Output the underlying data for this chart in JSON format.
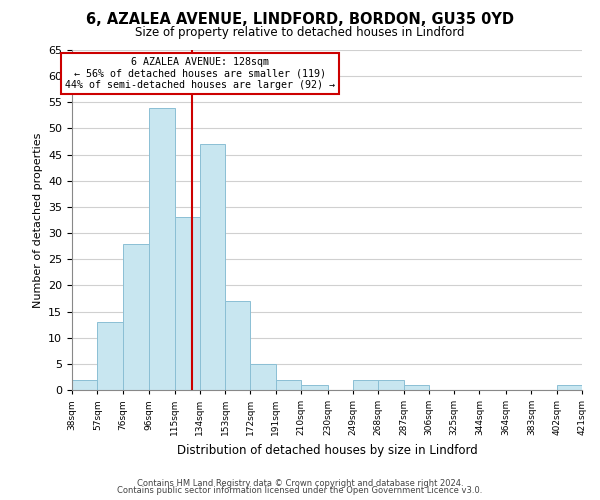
{
  "title": "6, AZALEA AVENUE, LINDFORD, BORDON, GU35 0YD",
  "subtitle": "Size of property relative to detached houses in Lindford",
  "xlabel": "Distribution of detached houses by size in Lindford",
  "ylabel": "Number of detached properties",
  "bar_color": "#c8e6f0",
  "bar_edge_color": "#8bbfd4",
  "bins": [
    38,
    57,
    76,
    96,
    115,
    134,
    153,
    172,
    191,
    210,
    230,
    249,
    268,
    287,
    306,
    325,
    344,
    364,
    383,
    402,
    421
  ],
  "counts": [
    2,
    13,
    28,
    54,
    33,
    47,
    17,
    5,
    2,
    1,
    0,
    2,
    2,
    1,
    0,
    0,
    0,
    0,
    0,
    1
  ],
  "tick_labels": [
    "38sqm",
    "57sqm",
    "76sqm",
    "96sqm",
    "115sqm",
    "134sqm",
    "153sqm",
    "172sqm",
    "191sqm",
    "210sqm",
    "230sqm",
    "249sqm",
    "268sqm",
    "287sqm",
    "306sqm",
    "325sqm",
    "344sqm",
    "364sqm",
    "383sqm",
    "402sqm",
    "421sqm"
  ],
  "ylim": [
    0,
    65
  ],
  "yticks": [
    0,
    5,
    10,
    15,
    20,
    25,
    30,
    35,
    40,
    45,
    50,
    55,
    60,
    65
  ],
  "property_line_x": 128,
  "property_line_color": "#cc0000",
  "annotation_title": "6 AZALEA AVENUE: 128sqm",
  "annotation_line1": "← 56% of detached houses are smaller (119)",
  "annotation_line2": "44% of semi-detached houses are larger (92) →",
  "annotation_box_facecolor": "#ffffff",
  "annotation_box_edgecolor": "#cc0000",
  "footer1": "Contains HM Land Registry data © Crown copyright and database right 2024.",
  "footer2": "Contains public sector information licensed under the Open Government Licence v3.0.",
  "background_color": "#ffffff",
  "grid_color": "#d0d0d0"
}
